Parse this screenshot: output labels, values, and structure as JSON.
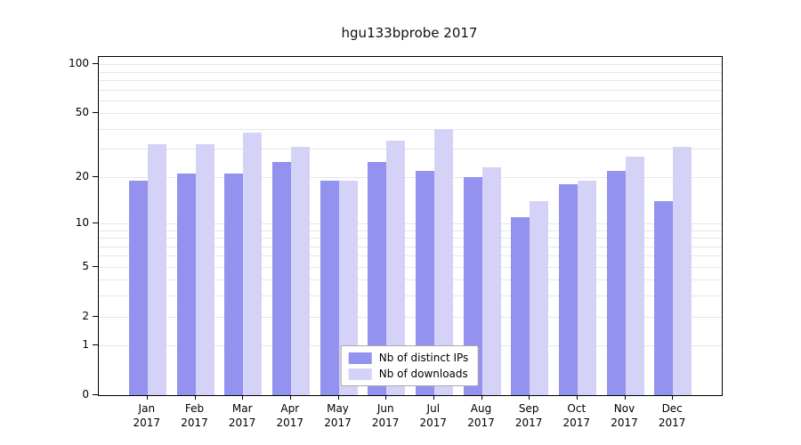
{
  "chart_data": {
    "type": "bar",
    "title": "hgu133bprobe 2017",
    "categories": [
      "Jan 2017",
      "Feb 2017",
      "Mar 2017",
      "Apr 2017",
      "May 2017",
      "Jun 2017",
      "Jul 2017",
      "Aug 2017",
      "Sep 2017",
      "Oct 2017",
      "Nov 2017",
      "Dec 2017"
    ],
    "series": [
      {
        "name": "Nb of distinct IPs",
        "color": "#9392ee",
        "values": [
          19,
          21,
          21,
          25,
          19,
          25,
          22,
          20,
          11,
          18,
          22,
          14
        ]
      },
      {
        "name": "Nb of downloads",
        "color": "#d4d3f7",
        "values": [
          32,
          32,
          38,
          31,
          19,
          34,
          40,
          23,
          14,
          19,
          27,
          31
        ]
      }
    ],
    "yscale": "log1p",
    "yticks": [
      0,
      1,
      2,
      5,
      10,
      20,
      50,
      100
    ],
    "ylim": [
      0,
      111
    ],
    "grid": true,
    "legend_position": "bottom-center",
    "colors": {
      "axis": "#000000",
      "gridline": "#e6e6e6",
      "background": "#ffffff"
    }
  }
}
